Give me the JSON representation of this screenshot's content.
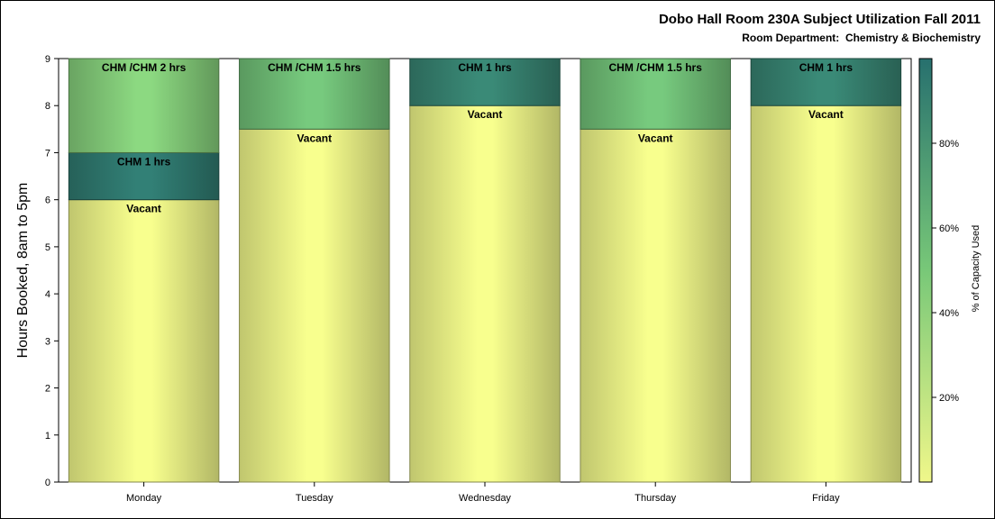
{
  "chart_data": {
    "type": "bar",
    "stacked": true,
    "title": "Dobo Hall Room 230A Subject Utilization Fall 2011",
    "subtitle": "Room Department:  Chemistry & Biochemistry",
    "xlabel": "",
    "ylabel": "Hours Booked, 8am to 5pm",
    "ylim": [
      0,
      9
    ],
    "yticks": [
      "0",
      "1",
      "2",
      "3",
      "4",
      "5",
      "6",
      "7",
      "8",
      "9"
    ],
    "categories": [
      "Monday",
      "Tuesday",
      "Wednesday",
      "Thursday",
      "Friday"
    ],
    "bars": [
      {
        "category": "Monday",
        "segments": [
          {
            "label": "Vacant",
            "hours": 6,
            "capacity_pct": 0
          },
          {
            "label": "CHM 1 hrs",
            "hours": 1,
            "capacity_pct": 95
          },
          {
            "label": "CHM /CHM 2 hrs",
            "hours": 2,
            "capacity_pct": 45
          }
        ]
      },
      {
        "category": "Tuesday",
        "segments": [
          {
            "label": "Vacant",
            "hours": 7.5,
            "capacity_pct": 0
          },
          {
            "label": "CHM /CHM 1.5 hrs",
            "hours": 1.5,
            "capacity_pct": 55
          }
        ]
      },
      {
        "category": "Wednesday",
        "segments": [
          {
            "label": "Vacant",
            "hours": 8,
            "capacity_pct": 0
          },
          {
            "label": "CHM 1 hrs",
            "hours": 1,
            "capacity_pct": 90
          }
        ]
      },
      {
        "category": "Thursday",
        "segments": [
          {
            "label": "Vacant",
            "hours": 7.5,
            "capacity_pct": 0
          },
          {
            "label": "CHM /CHM 1.5 hrs",
            "hours": 1.5,
            "capacity_pct": 55
          }
        ]
      },
      {
        "category": "Friday",
        "segments": [
          {
            "label": "Vacant",
            "hours": 8,
            "capacity_pct": 0
          },
          {
            "label": "CHM 1 hrs",
            "hours": 1,
            "capacity_pct": 90
          }
        ]
      }
    ],
    "colorbar": {
      "label": "% of Capacity Used",
      "ticks": [
        {
          "value": 20,
          "label": "20%"
        },
        {
          "value": 40,
          "label": "40%"
        },
        {
          "value": 60,
          "label": "60%"
        },
        {
          "value": 80,
          "label": "80%"
        }
      ],
      "range": [
        0,
        100
      ],
      "colors": [
        "#f0f78a",
        "#78c878",
        "#27706e"
      ]
    },
    "grid": false,
    "legend": "colorbar-right"
  }
}
